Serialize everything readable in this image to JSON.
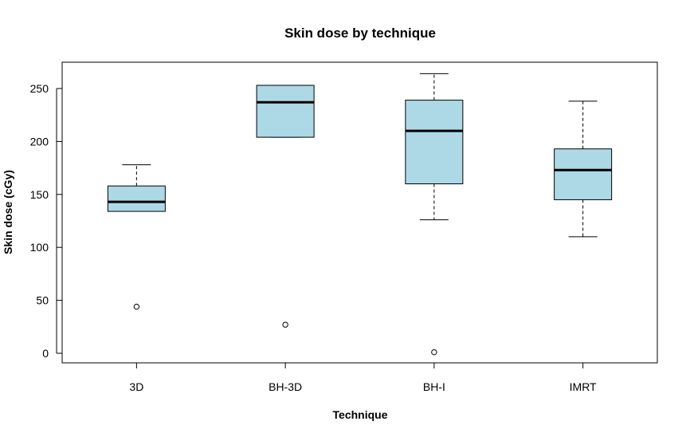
{
  "chart_data": {
    "type": "boxplot",
    "title": "Skin dose by technique",
    "xlabel": "Technique",
    "ylabel": "Skin dose (cGy)",
    "ylim": [
      -10,
      275
    ],
    "yticks": [
      0,
      50,
      100,
      150,
      200,
      250
    ],
    "box_color": "#add8e6",
    "grid": false,
    "legend": "none",
    "categories": [
      "3D",
      "BH-3D",
      "BH-I",
      "IMRT"
    ],
    "boxes": [
      {
        "category": "3D",
        "whisker_low": 134,
        "q1": 134,
        "median": 143,
        "q3": 158,
        "whisker_high": 178,
        "outliers": [
          44
        ]
      },
      {
        "category": "BH-3D",
        "whisker_low": 204,
        "q1": 204,
        "median": 237,
        "q3": 253,
        "whisker_high": 253,
        "outliers": [
          27
        ]
      },
      {
        "category": "BH-I",
        "whisker_low": 126,
        "q1": 160,
        "median": 210,
        "q3": 239,
        "whisker_high": 264,
        "outliers": [
          1
        ]
      },
      {
        "category": "IMRT",
        "whisker_low": 110,
        "q1": 145,
        "median": 173,
        "q3": 193,
        "whisker_high": 238,
        "outliers": []
      }
    ]
  }
}
